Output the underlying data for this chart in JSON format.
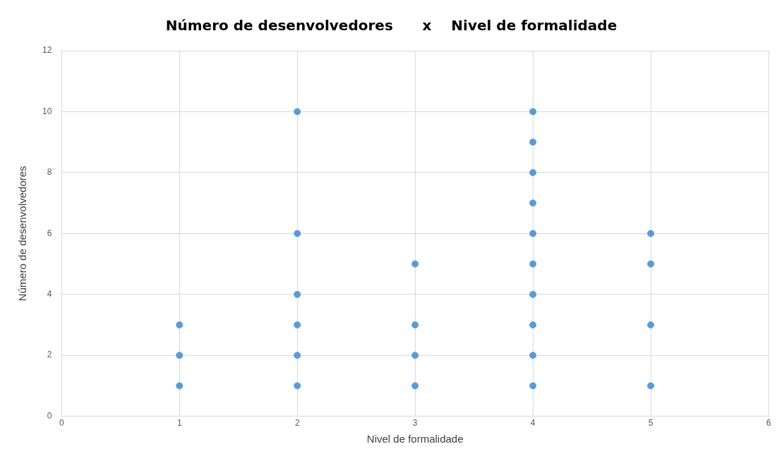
{
  "chart_data": {
    "type": "scatter",
    "title": "Número de desenvolvedores      x    Nivel de formalidade",
    "xlabel": "Nivel de formalidade",
    "ylabel": "Número de desenvolvedores",
    "x": [
      1,
      1,
      1,
      2,
      2,
      2,
      2,
      2,
      2,
      3,
      3,
      3,
      3,
      4,
      4,
      4,
      4,
      4,
      4,
      4,
      4,
      4,
      4,
      5,
      5,
      5,
      5
    ],
    "values": [
      1,
      2,
      3,
      1,
      2,
      3,
      4,
      6,
      10,
      1,
      2,
      3,
      5,
      1,
      2,
      3,
      4,
      5,
      6,
      7,
      8,
      9,
      10,
      1,
      3,
      5,
      6
    ],
    "color": "#5b9bd5",
    "marker": "circle",
    "xlim": [
      0,
      6
    ],
    "xticks": [
      0,
      1,
      2,
      3,
      4,
      5,
      6
    ],
    "ylim": [
      0,
      12
    ],
    "yticks": [
      0,
      2,
      4,
      6,
      8,
      10,
      12
    ],
    "grid": true,
    "legend": false
  }
}
